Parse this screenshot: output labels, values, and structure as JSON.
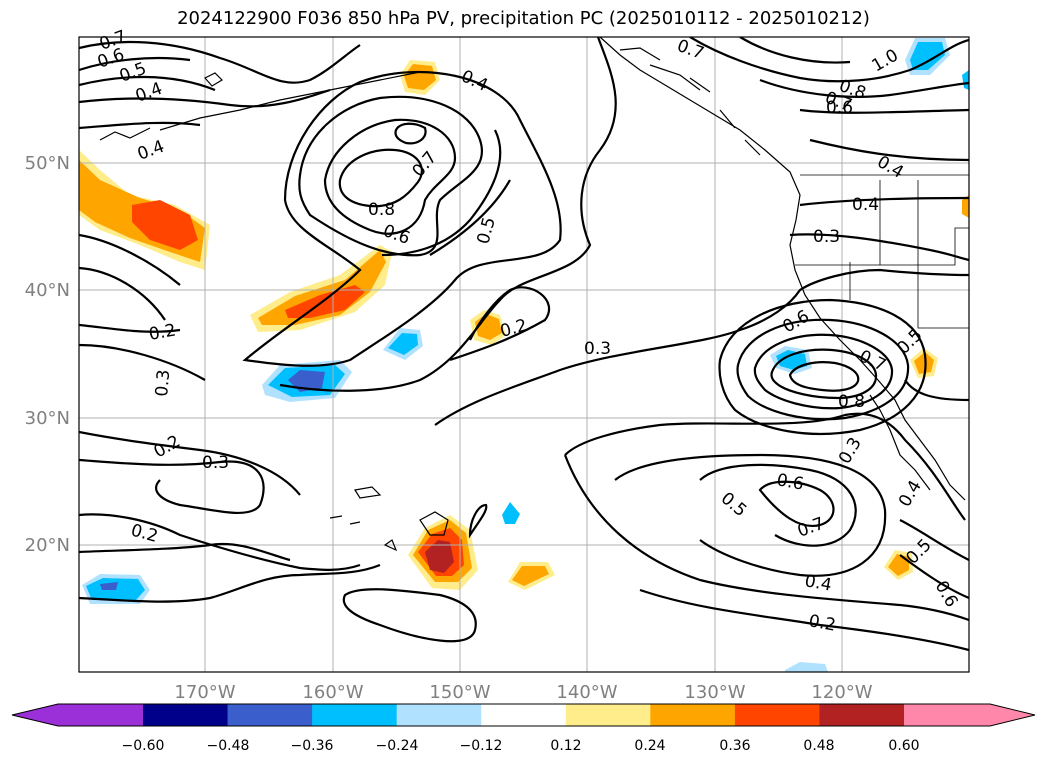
{
  "title": "2024122900 F036 850 hPa PV, precipitation PC (2025010112 - 2025010212)",
  "map": {
    "lon_range": [
      -180,
      -110
    ],
    "lat_range": [
      10,
      60
    ],
    "lat_ticks": [
      "50°N",
      "40°N",
      "30°N",
      "20°N"
    ],
    "lon_ticks": [
      "170°W",
      "160°W",
      "150°W",
      "140°W",
      "130°W",
      "120°W"
    ],
    "grid": true,
    "contour_labels": [
      "0.7",
      "0.6",
      "0.5",
      "0.4",
      "0.4",
      "0.4",
      "0.7",
      "0.8",
      "0.6",
      "0.5",
      "0.2",
      "0.3",
      "0.2",
      "0.3",
      "0.2",
      "0.2",
      "0.3",
      "0.6",
      "0.7",
      "0.8",
      "0.3",
      "0.6",
      "0.5",
      "0.7",
      "0.4",
      "0.2",
      "0.5",
      "0.6",
      "0.4",
      "0.4",
      "0.3",
      "1.0",
      "0.8",
      "0.7",
      "0.6",
      "0.5",
      "0.7",
      "0.4"
    ]
  },
  "colorbar": {
    "ticks": [
      "−0.60",
      "−0.48",
      "−0.36",
      "−0.24",
      "−0.12",
      "0.12",
      "0.24",
      "0.36",
      "0.48",
      "0.60"
    ],
    "colors": [
      "#9b30d8",
      "#00008b",
      "#3a5fcd",
      "#00bfff",
      "#b0e2ff",
      "#ffffff",
      "#ffec8b",
      "#ffa500",
      "#ff4500",
      "#b22222",
      "#ff88aa"
    ]
  }
}
